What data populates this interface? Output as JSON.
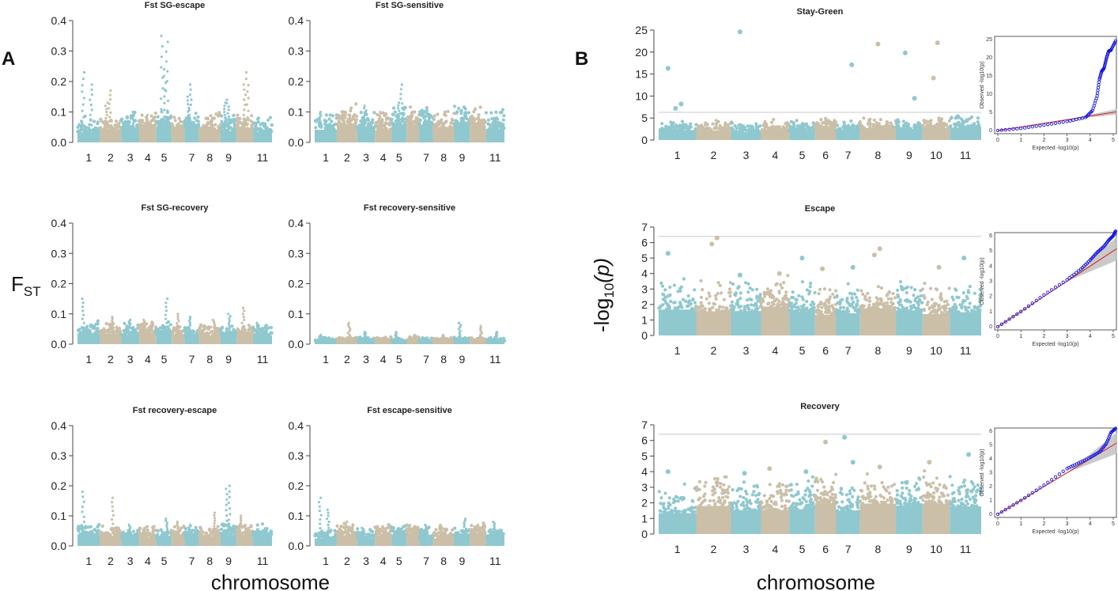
{
  "figure": {
    "panel_a_label": "A",
    "panel_b_label": "B",
    "fst_ylabel": "F",
    "fst_ylabel_sub": "ST",
    "gwas_ylabel_pre": "-log",
    "gwas_ylabel_sub": "10",
    "gwas_ylabel_post": "(p)",
    "xlabel_left": "chromosome",
    "xlabel_right": "chromosome"
  },
  "colors": {
    "teal": "#8fc8cf",
    "tan": "#cbbfa8",
    "threshold": "#c8c8c8",
    "qq_points": "#1515e0",
    "qq_line": "#d11f1f",
    "qq_band": "#bdbdbd"
  },
  "chart_data": [
    {
      "id": "fst1",
      "type": "scatter",
      "title": "Fst SG-escape",
      "ylim": [
        0,
        0.4
      ],
      "yticks": [
        "0.0",
        "0.1",
        "0.2",
        "0.3",
        "0.4"
      ],
      "xticks": [
        "1",
        "2",
        "3",
        "4",
        "5",
        "7",
        "8",
        "9",
        "11"
      ],
      "chromosomes": 11,
      "baseline": 0.04,
      "peaks": [
        [
          1,
          0.23
        ],
        [
          1,
          0.19
        ],
        [
          2,
          0.17
        ],
        [
          2,
          0.13
        ],
        [
          3,
          0.1
        ],
        [
          4,
          0.09
        ],
        [
          5,
          0.35
        ],
        [
          5,
          0.33
        ],
        [
          5,
          0.24
        ],
        [
          7,
          0.19
        ],
        [
          7,
          0.15
        ],
        [
          8,
          0.08
        ],
        [
          9,
          0.14
        ],
        [
          9,
          0.13
        ],
        [
          10,
          0.23
        ],
        [
          10,
          0.19
        ]
      ]
    },
    {
      "id": "fst2",
      "type": "scatter",
      "title": "Fst SG-sensitive",
      "ylim": [
        0,
        0.4
      ],
      "yticks": [
        "0.0",
        "0.1",
        "0.2",
        "0.3",
        "0.4"
      ],
      "xticks": [
        "1",
        "2",
        "3",
        "4",
        "5",
        "7",
        "8",
        "9",
        "11"
      ],
      "chromosomes": 11,
      "baseline": 0.05,
      "peaks": [
        [
          1,
          0.1
        ],
        [
          2,
          0.09
        ],
        [
          3,
          0.12
        ],
        [
          4,
          0.1
        ],
        [
          5,
          0.19
        ],
        [
          5,
          0.13
        ],
        [
          6,
          0.09
        ],
        [
          7,
          0.09
        ],
        [
          9,
          0.07
        ],
        [
          11,
          0.08
        ]
      ]
    },
    {
      "id": "fst3",
      "type": "scatter",
      "title": "Fst SG-recovery",
      "ylim": [
        0,
        0.4
      ],
      "yticks": [
        "0.0",
        "0.1",
        "0.2",
        "0.3",
        "0.4"
      ],
      "xticks": [
        "1",
        "2",
        "3",
        "4",
        "5",
        "7",
        "8",
        "9",
        "11"
      ],
      "chromosomes": 11,
      "baseline": 0.03,
      "peaks": [
        [
          1,
          0.15
        ],
        [
          2,
          0.09
        ],
        [
          3,
          0.08
        ],
        [
          4,
          0.08
        ],
        [
          5,
          0.15
        ],
        [
          6,
          0.1
        ],
        [
          7,
          0.09
        ],
        [
          8,
          0.08
        ],
        [
          9,
          0.1
        ],
        [
          10,
          0.12
        ],
        [
          11,
          0.07
        ]
      ]
    },
    {
      "id": "fst4",
      "type": "scatter",
      "title": "Fst recovery-sensitive",
      "ylim": [
        0,
        0.4
      ],
      "yticks": [
        "0.0",
        "0.1",
        "0.2",
        "0.3",
        "0.4"
      ],
      "xticks": [
        "1",
        "2",
        "3",
        "4",
        "5",
        "7",
        "8",
        "9",
        "11"
      ],
      "chromosomes": 11,
      "baseline": 0.01,
      "peaks": [
        [
          1,
          0.03
        ],
        [
          2,
          0.07
        ],
        [
          3,
          0.04
        ],
        [
          5,
          0.04
        ],
        [
          6,
          0.03
        ],
        [
          8,
          0.03
        ],
        [
          9,
          0.07
        ],
        [
          10,
          0.06
        ],
        [
          11,
          0.04
        ]
      ]
    },
    {
      "id": "fst5",
      "type": "scatter",
      "title": "Fst recovery-escape",
      "ylim": [
        0,
        0.4
      ],
      "yticks": [
        "0.0",
        "0.1",
        "0.2",
        "0.3",
        "0.4"
      ],
      "xticks": [
        "1",
        "2",
        "3",
        "4",
        "5",
        "7",
        "8",
        "9",
        "11"
      ],
      "chromosomes": 11,
      "baseline": 0.03,
      "peaks": [
        [
          1,
          0.18
        ],
        [
          2,
          0.16
        ],
        [
          3,
          0.07
        ],
        [
          4,
          0.06
        ],
        [
          5,
          0.09
        ],
        [
          6,
          0.08
        ],
        [
          7,
          0.07
        ],
        [
          8,
          0.11
        ],
        [
          9,
          0.2
        ],
        [
          9,
          0.19
        ],
        [
          10,
          0.1
        ]
      ]
    },
    {
      "id": "fst6",
      "type": "scatter",
      "title": "Fst escape-sensitive",
      "ylim": [
        0,
        0.4
      ],
      "yticks": [
        "0.0",
        "0.1",
        "0.2",
        "0.3",
        "0.4"
      ],
      "xticks": [
        "1",
        "2",
        "3",
        "4",
        "5",
        "7",
        "8",
        "9",
        "11"
      ],
      "chromosomes": 11,
      "baseline": 0.03,
      "peaks": [
        [
          1,
          0.16
        ],
        [
          1,
          0.12
        ],
        [
          2,
          0.08
        ],
        [
          3,
          0.06
        ],
        [
          5,
          0.06
        ],
        [
          7,
          0.07
        ],
        [
          8,
          0.07
        ],
        [
          9,
          0.09
        ],
        [
          10,
          0.07
        ],
        [
          11,
          0.08
        ]
      ]
    },
    {
      "id": "gwas1",
      "type": "scatter",
      "title": "Stay-Green",
      "ylim": [
        0,
        25
      ],
      "yticks": [
        "0",
        "5",
        "10",
        "15",
        "20",
        "25"
      ],
      "xticks": [
        "1",
        "2",
        "3",
        "4",
        "5",
        "6",
        "7",
        "8",
        "9",
        "10",
        "11"
      ],
      "chromosomes": 11,
      "threshold": 6.3,
      "baseline": 2.2,
      "noise": 2.6,
      "peaks": [
        [
          1,
          16.3
        ],
        [
          1,
          8.2
        ],
        [
          1,
          7.2
        ],
        [
          3,
          24.6
        ],
        [
          7,
          17.1
        ],
        [
          8,
          21.8
        ],
        [
          9,
          19.8
        ],
        [
          9,
          9.5
        ],
        [
          10,
          22.1
        ],
        [
          10,
          14.1
        ],
        [
          11,
          5.3
        ]
      ]
    },
    {
      "id": "gwas2",
      "type": "scatter",
      "title": "Escape",
      "ylim": [
        0,
        7
      ],
      "yticks": [
        "0",
        "1",
        "2",
        "3",
        "4",
        "5",
        "6",
        "7"
      ],
      "xticks": [
        "1",
        "2",
        "3",
        "4",
        "5",
        "6",
        "7",
        "8",
        "9",
        "10",
        "11"
      ],
      "chromosomes": 11,
      "threshold": 6.4,
      "baseline": 1.6,
      "noise": 2.2,
      "peaks": [
        [
          1,
          5.3
        ],
        [
          2,
          6.3
        ],
        [
          2,
          5.9
        ],
        [
          3,
          3.9
        ],
        [
          4,
          4.0
        ],
        [
          5,
          5.0
        ],
        [
          6,
          4.3
        ],
        [
          7,
          4.4
        ],
        [
          8,
          5.6
        ],
        [
          8,
          5.2
        ],
        [
          9,
          3.0
        ],
        [
          10,
          4.4
        ],
        [
          11,
          5.0
        ]
      ]
    },
    {
      "id": "gwas3",
      "type": "scatter",
      "title": "Recovery",
      "ylim": [
        0,
        7
      ],
      "yticks": [
        "0",
        "1",
        "2",
        "3",
        "4",
        "5",
        "6",
        "7"
      ],
      "xticks": [
        "1",
        "2",
        "3",
        "4",
        "5",
        "6",
        "7",
        "8",
        "9",
        "10",
        "11"
      ],
      "chromosomes": 11,
      "threshold": 6.4,
      "baseline": 1.6,
      "noise": 2.2,
      "peaks": [
        [
          1,
          4.0
        ],
        [
          2,
          3.3
        ],
        [
          3,
          3.9
        ],
        [
          4,
          4.2
        ],
        [
          5,
          4.0
        ],
        [
          6,
          5.9
        ],
        [
          7,
          6.2
        ],
        [
          7,
          4.6
        ],
        [
          8,
          4.3
        ],
        [
          9,
          3.3
        ],
        [
          10,
          4.6
        ],
        [
          11,
          5.1
        ]
      ]
    },
    {
      "id": "qq1",
      "type": "scatter",
      "title": "",
      "xlabel": "Expected -log10(p)",
      "ylabel": "Observed -log10(p)",
      "xlim": [
        0,
        5
      ],
      "ylim": [
        0,
        25
      ],
      "xticks": [
        "0",
        "1",
        "2",
        "3",
        "4",
        "5"
      ],
      "yticks": [
        "0",
        "5",
        "10",
        "15",
        "20",
        "25"
      ],
      "points": [
        [
          0,
          0
        ],
        [
          1,
          0.6
        ],
        [
          2,
          1.5
        ],
        [
          3,
          2.5
        ],
        [
          3.8,
          3.6
        ],
        [
          4.1,
          5.5
        ],
        [
          4.3,
          9.5
        ],
        [
          4.4,
          14.1
        ],
        [
          4.5,
          16.3
        ],
        [
          4.6,
          17.1
        ],
        [
          4.7,
          19.8
        ],
        [
          4.8,
          21.8
        ],
        [
          4.9,
          22.1
        ],
        [
          5.1,
          24.6
        ]
      ]
    },
    {
      "id": "qq2",
      "type": "scatter",
      "title": "",
      "xlabel": "Expected -log10(p)",
      "ylabel": "Observed -log10(p)",
      "xlim": [
        0,
        5
      ],
      "ylim": [
        0,
        6
      ],
      "xticks": [
        "0",
        "1",
        "2",
        "3",
        "4",
        "5"
      ],
      "yticks": [
        "0",
        "1",
        "2",
        "3",
        "4",
        "5",
        "6"
      ],
      "points": [
        [
          0,
          0
        ],
        [
          1,
          1
        ],
        [
          2,
          2.1
        ],
        [
          3,
          3.1
        ],
        [
          3.6,
          3.8
        ],
        [
          4,
          4.4
        ],
        [
          4.3,
          4.9
        ],
        [
          4.6,
          5.3
        ],
        [
          4.8,
          5.7
        ],
        [
          5,
          6.0
        ],
        [
          5.1,
          6.3
        ]
      ]
    },
    {
      "id": "qq3",
      "type": "scatter",
      "title": "",
      "xlabel": "Expected -log10(p)",
      "ylabel": "Observed -log10(p)",
      "xlim": [
        0,
        5
      ],
      "ylim": [
        0,
        6
      ],
      "xticks": [
        "0",
        "1",
        "2",
        "3",
        "4",
        "5"
      ],
      "yticks": [
        "0",
        "1",
        "2",
        "3",
        "4",
        "5",
        "6"
      ],
      "points": [
        [
          0,
          0
        ],
        [
          1,
          1
        ],
        [
          2,
          2.1
        ],
        [
          3,
          3.3
        ],
        [
          3.5,
          3.7
        ],
        [
          4,
          4.1
        ],
        [
          4.4,
          4.5
        ],
        [
          4.7,
          5.1
        ],
        [
          4.9,
          5.9
        ],
        [
          5.1,
          6.2
        ]
      ]
    }
  ]
}
